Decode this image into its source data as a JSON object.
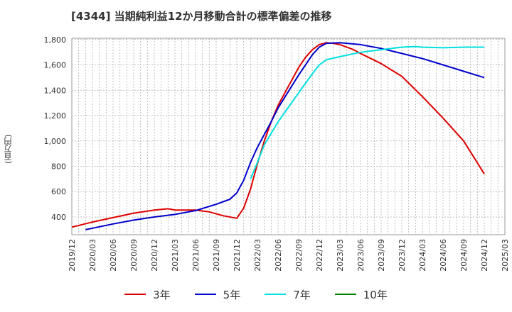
{
  "chart_data": {
    "type": "line",
    "title": "[4344]  当期純利益12か月移動合計の標準偏差の推移",
    "ylabel": "(百万円)",
    "xlabel": "",
    "ylim": [
      260,
      1810
    ],
    "grid": true,
    "legend_position": "bottom",
    "y_ticks": [
      400,
      600,
      800,
      1000,
      1200,
      1400,
      1600,
      1800
    ],
    "y_tick_labels": [
      "400",
      "600",
      "800",
      "1,000",
      "1,200",
      "1,400",
      "1,600",
      "1,800"
    ],
    "x_tick_labels": [
      "2019/12",
      "2020/03",
      "2020/06",
      "2020/09",
      "2020/12",
      "2021/03",
      "2021/06",
      "2021/09",
      "2021/12",
      "2022/03",
      "2022/06",
      "2022/09",
      "2022/12",
      "2023/03",
      "2023/06",
      "2023/09",
      "2023/12",
      "2024/03",
      "2024/06",
      "2024/09",
      "2024/12",
      "2025/03"
    ],
    "series": [
      {
        "name": "3年",
        "color": "#dd0000",
        "x": [
          "2019/12",
          "2020/03",
          "2020/06",
          "2020/09",
          "2020/12",
          "2021/02",
          "2021/03",
          "2021/06",
          "2021/08",
          "2021/10",
          "2021/12",
          "2022/01",
          "2022/02",
          "2022/03",
          "2022/04",
          "2022/05",
          "2022/06",
          "2022/08",
          "2022/09",
          "2022/10",
          "2022/11",
          "2022/12",
          "2023/01",
          "2023/02",
          "2023/03",
          "2023/05",
          "2023/06",
          "2023/09",
          "2023/12",
          "2024/03",
          "2024/06",
          "2024/09",
          "2024/12"
        ],
        "values": [
          320,
          360,
          395,
          430,
          455,
          465,
          455,
          455,
          440,
          410,
          390,
          470,
          620,
          820,
          1000,
          1150,
          1280,
          1480,
          1580,
          1660,
          1720,
          1760,
          1775,
          1770,
          1760,
          1720,
          1690,
          1610,
          1510,
          1350,
          1180,
          1000,
          740
        ]
      },
      {
        "name": "5年",
        "color": "#0000cc",
        "x": [
          "2020/02",
          "2020/06",
          "2020/09",
          "2020/12",
          "2021/03",
          "2021/06",
          "2021/09",
          "2021/11",
          "2021/12",
          "2022/01",
          "2022/02",
          "2022/03",
          "2022/05",
          "2022/06",
          "2022/09",
          "2022/11",
          "2022/12",
          "2023/01",
          "2023/03",
          "2023/06",
          "2023/09",
          "2023/12",
          "2024/03",
          "2024/06",
          "2024/09",
          "2024/12"
        ],
        "values": [
          300,
          345,
          375,
          400,
          420,
          450,
          500,
          540,
          590,
          690,
          830,
          950,
          1150,
          1260,
          1520,
          1680,
          1740,
          1770,
          1775,
          1760,
          1730,
          1690,
          1650,
          1600,
          1550,
          1500
        ]
      },
      {
        "name": "7年",
        "color": "#00e0e0",
        "x": [
          "2022/02",
          "2022/03",
          "2022/04",
          "2022/06",
          "2022/09",
          "2022/11",
          "2022/12",
          "2023/01",
          "2023/03",
          "2023/06",
          "2023/09",
          "2023/12",
          "2024/02",
          "2024/03",
          "2024/06",
          "2024/09",
          "2024/12"
        ],
        "values": [
          700,
          830,
          970,
          1150,
          1380,
          1530,
          1600,
          1640,
          1665,
          1700,
          1720,
          1740,
          1745,
          1740,
          1735,
          1740,
          1740
        ]
      },
      {
        "name": "10年",
        "color": "#008000",
        "x": [],
        "values": []
      }
    ]
  }
}
